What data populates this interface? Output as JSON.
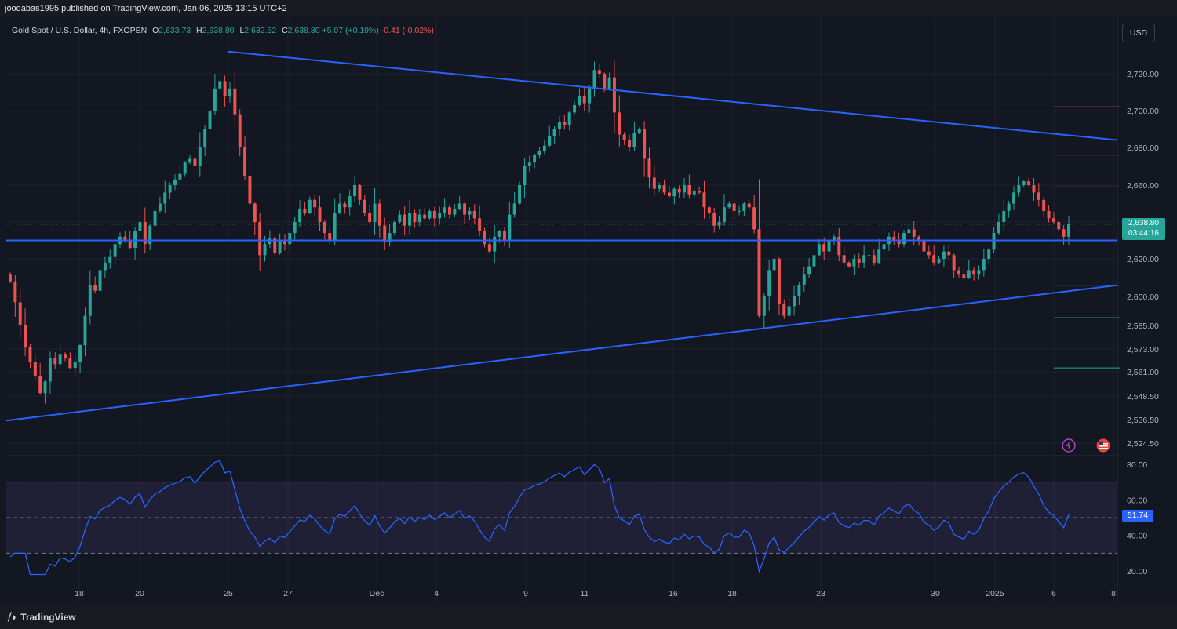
{
  "header": {
    "publisher_text": "joodabas1995 published on TradingView.com, Jan 06, 2025 13:15 UTC+2"
  },
  "ohlc": {
    "symbol": "Gold Spot / U.S. Dollar, 4h, FXOPEN",
    "o_label": "O",
    "o": "2,633.73",
    "h_label": "H",
    "h": "2,638.80",
    "l_label": "L",
    "l": "2,632.52",
    "c_label": "C",
    "c": "2,638.80",
    "change": "+5.07 (+0.19%)",
    "change2": "-0.41 (-0.02%)"
  },
  "currency_button": "USD",
  "price_tag": {
    "price": "2,638.80",
    "countdown": "03:44:16"
  },
  "rsi_tag": "51.74",
  "footer": {
    "logo_text": "TradingView"
  },
  "colors": {
    "up": "#26a69a",
    "down": "#ef5350",
    "trendline": "#2962ff",
    "rsi_line": "#2962ff",
    "rsi_band": "#7e57c2",
    "background": "#131722"
  },
  "icons": [
    "lightning-icon",
    "us-flag-icon",
    "tradingview-logo-icon"
  ],
  "chart_data": [
    {
      "type": "candlestick",
      "title": "Gold Spot / U.S. Dollar, 4h, FXOPEN",
      "y_ticks": [
        2524.5,
        2536.5,
        2548.5,
        2561,
        2573,
        2585,
        2600,
        2620,
        2640,
        2660,
        2680,
        2700,
        2720
      ],
      "y_tick_labels": [
        "2,524.50",
        "2,536.50",
        "2,548.50",
        "2,561.00",
        "2,573.00",
        "2,585.00",
        "2,600.00",
        "2,620.00",
        "2,640.00",
        "2,660.00",
        "2,680.00",
        "2,700.00",
        "2,720.00"
      ],
      "x_tick_labels": [
        "18",
        "20",
        "25",
        "27",
        "Dec",
        "4",
        "9",
        "11",
        "16",
        "18",
        "23",
        "30",
        "2025",
        "6",
        "8"
      ],
      "last_price": 2638.8,
      "horizontal_line": 2630,
      "resistance_line": {
        "from": [
          "Nov 25",
          2732
        ],
        "to": [
          "Jan 8",
          2684
        ]
      },
      "support_line": {
        "from": [
          "Nov 14",
          2536
        ],
        "to": [
          "Jan 8",
          2606
        ]
      },
      "levels_red": [
        2702,
        2676,
        2659
      ],
      "levels_green": [
        2606,
        2589,
        2563
      ],
      "closes": [
        2608,
        2597,
        2585,
        2574,
        2566,
        2559,
        2550,
        2556,
        2568,
        2565,
        2570,
        2568,
        2563,
        2566,
        2575,
        2590,
        2606,
        2603,
        2614,
        2618,
        2621,
        2628,
        2632,
        2630,
        2626,
        2635,
        2640,
        2628,
        2638,
        2646,
        2650,
        2656,
        2660,
        2663,
        2666,
        2672,
        2674,
        2670,
        2680,
        2690,
        2700,
        2712,
        2716,
        2708,
        2712,
        2698,
        2680,
        2665,
        2650,
        2640,
        2622,
        2628,
        2631,
        2623,
        2630,
        2628,
        2634,
        2640,
        2647,
        2645,
        2652,
        2648,
        2640,
        2634,
        2630,
        2645,
        2650,
        2648,
        2654,
        2660,
        2652,
        2645,
        2640,
        2650,
        2638,
        2629,
        2634,
        2640,
        2644,
        2638,
        2645,
        2640,
        2644,
        2642,
        2646,
        2642,
        2645,
        2648,
        2644,
        2647,
        2650,
        2644,
        2646,
        2642,
        2635,
        2628,
        2624,
        2632,
        2635,
        2630,
        2644,
        2650,
        2660,
        2670,
        2672,
        2676,
        2678,
        2681,
        2686,
        2690,
        2694,
        2692,
        2699,
        2703,
        2708,
        2704,
        2712,
        2722,
        2720,
        2712,
        2718,
        2699,
        2687,
        2684,
        2680,
        2688,
        2690,
        2674,
        2664,
        2658,
        2660,
        2656,
        2654,
        2658,
        2656,
        2660,
        2655,
        2657,
        2656,
        2648,
        2645,
        2638,
        2640,
        2648,
        2650,
        2646,
        2646,
        2650,
        2648,
        2636,
        2590,
        2600,
        2614,
        2620,
        2596,
        2590,
        2595,
        2600,
        2606,
        2612,
        2616,
        2622,
        2628,
        2624,
        2630,
        2632,
        2622,
        2618,
        2616,
        2620,
        2618,
        2622,
        2622,
        2618,
        2625,
        2628,
        2632,
        2630,
        2628,
        2634,
        2636,
        2632,
        2630,
        2624,
        2622,
        2618,
        2620,
        2624,
        2622,
        2614,
        2612,
        2610,
        2614,
        2612,
        2614,
        2620,
        2625,
        2634,
        2640,
        2646,
        2650,
        2656,
        2660,
        2662,
        2660,
        2656,
        2652,
        2646,
        2642,
        2640,
        2636,
        2632,
        2638.8
      ]
    },
    {
      "type": "line",
      "title": "RSI",
      "y_ticks": [
        20,
        40,
        60,
        80
      ],
      "y_tick_labels": [
        "20.00",
        "40.00",
        "60.00",
        "80.00"
      ],
      "bands": [
        30,
        50,
        70
      ],
      "last_value": 51.74
    }
  ]
}
